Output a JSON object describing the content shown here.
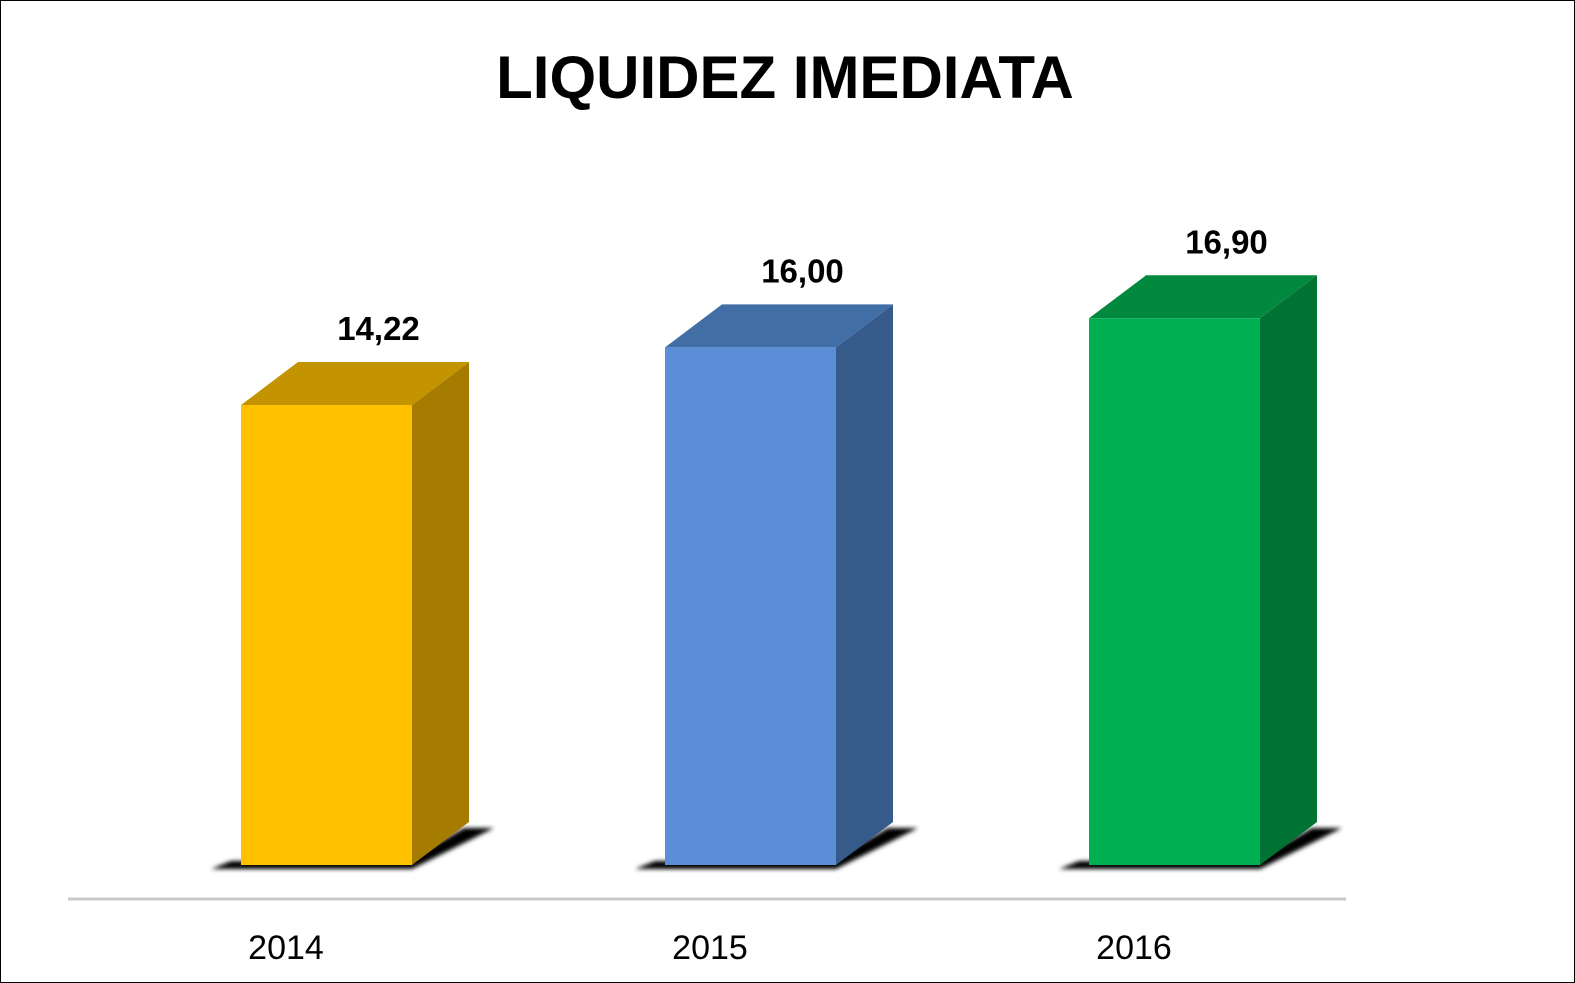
{
  "chart_data": {
    "type": "bar",
    "title": "LIQUIDEZ IMEDIATA",
    "categories": [
      "2014",
      "2015",
      "2016"
    ],
    "values": [
      14.22,
      16.0,
      16.9
    ],
    "data_labels": [
      "14,22",
      "16,00",
      "16,90"
    ],
    "colors": [
      {
        "front": "#ffc000",
        "side": "#a67c00",
        "top": "#c49400"
      },
      {
        "front": "#5a8ed6",
        "side": "#365b8a",
        "top": "#426ea6"
      },
      {
        "front": "#00b050",
        "side": "#007233",
        "top": "#00893f"
      }
    ],
    "axis_line_color": "#c8c8c8",
    "grid": false,
    "legend": "none",
    "xlabel": "",
    "ylabel": "",
    "ylim": [
      0,
      17
    ]
  }
}
